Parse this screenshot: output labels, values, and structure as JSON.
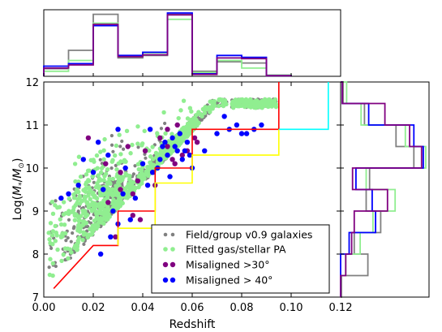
{
  "chart_data": {
    "type": "scatter",
    "xlabel": "Redshift",
    "ylabel": "Log(M_*/M_⊙)",
    "ylabel_parts": {
      "pre": "Log(",
      "M": "M",
      "sub": "*",
      "slash": "/",
      "M2": "M",
      "sub2": "⊙",
      "post": ")"
    },
    "xlim": [
      0.0,
      0.12
    ],
    "ylim": [
      7,
      12
    ],
    "x_ticks": [
      "0.00",
      "0.02",
      "0.04",
      "0.06",
      "0.08",
      "0.10",
      "0.12"
    ],
    "x_tick_values": [
      0.0,
      0.02,
      0.04,
      0.06,
      0.08,
      0.1,
      0.12
    ],
    "y_ticks": [
      "7",
      "8",
      "9",
      "10",
      "11",
      "12"
    ],
    "y_tick_values": [
      7,
      8,
      9,
      10,
      11,
      12
    ],
    "legend": {
      "placement": "bottom-right",
      "entries": [
        {
          "label": "Field/group v0.9 galaxies",
          "color": "#808080"
        },
        {
          "label": "Fitted gas/stellar PA",
          "color": "#90ee90"
        },
        {
          "label": "Misaligned >30°",
          "color": "#800080"
        },
        {
          "label": "Misaligned > 40°",
          "color": "#0000ff"
        }
      ]
    },
    "colors": {
      "field": "#808080",
      "fitted": "#90ee90",
      "mis30": "#800080",
      "mis40": "#0000ff",
      "limit_red": "#ff0000",
      "limit_yellow": "#ffff00",
      "limit_cyan": "#00ffff"
    },
    "limit_lines": [
      {
        "color": "#ff0000",
        "x": [
          0.004,
          0.02,
          0.02,
          0.03,
          0.03,
          0.045,
          0.045,
          0.06,
          0.06,
          0.095,
          0.095
        ],
        "y": [
          7.2,
          8.2,
          8.2,
          8.2,
          9.0,
          9.0,
          10.0,
          10.0,
          10.9,
          10.9,
          12.0
        ]
      },
      {
        "color": "#ffff00",
        "x": [
          0.03,
          0.03,
          0.045,
          0.045,
          0.06,
          0.06,
          0.095,
          0.095
        ],
        "y": [
          8.2,
          8.6,
          8.6,
          9.65,
          9.65,
          10.3,
          10.3,
          10.9
        ]
      },
      {
        "color": "#00ffff",
        "x": [
          0.095,
          0.115,
          0.115
        ],
        "y": [
          10.9,
          10.9,
          12.0
        ]
      }
    ],
    "scatter_mis30": {
      "x": [
        0.018,
        0.025,
        0.026,
        0.029,
        0.031,
        0.034,
        0.036,
        0.038,
        0.041,
        0.044,
        0.047,
        0.05,
        0.052,
        0.054,
        0.058,
        0.062,
        0.039,
        0.05,
        0.045,
        0.053,
        0.056,
        0.061,
        0.031,
        0.036
      ],
      "y": [
        10.7,
        10.1,
        9.2,
        8.4,
        9.5,
        10.5,
        8.9,
        9.7,
        10.4,
        9.9,
        10.7,
        10.5,
        10.2,
        11.0,
        10.4,
        10.6,
        8.8,
        10.9,
        9.6,
        10.1,
        10.3,
        10.7,
        9.9,
        9.4
      ]
    },
    "scatter_mis40": {
      "x": [
        0.007,
        0.01,
        0.014,
        0.016,
        0.02,
        0.022,
        0.024,
        0.026,
        0.028,
        0.03,
        0.032,
        0.033,
        0.035,
        0.037,
        0.04,
        0.042,
        0.044,
        0.046,
        0.048,
        0.05,
        0.052,
        0.054,
        0.056,
        0.058,
        0.06,
        0.065,
        0.07,
        0.073,
        0.075,
        0.078,
        0.08,
        0.082,
        0.085,
        0.088,
        0.03,
        0.027,
        0.023,
        0.043,
        0.047,
        0.055,
        0.059,
        0.051,
        0.049,
        0.053,
        0.057
      ],
      "y": [
        9.3,
        9.4,
        9.6,
        10.2,
        9.9,
        10.6,
        9.5,
        10.3,
        9.0,
        10.9,
        9.4,
        10.0,
        8.8,
        9.3,
        10.1,
        9.6,
        9.9,
        10.0,
        10.5,
        10.3,
        10.7,
        10.4,
        10.2,
        10.6,
        10.0,
        10.4,
        10.8,
        11.2,
        10.9,
        11.0,
        10.8,
        10.8,
        10.9,
        11.0,
        8.7,
        8.4,
        8.0,
        10.9,
        10.2,
        10.8,
        10.3,
        9.8,
        10.6,
        10.5,
        10.4
      ]
    },
    "top_hist": {
      "bin_edges": [
        0.0,
        0.01,
        0.02,
        0.03,
        0.04,
        0.05,
        0.06,
        0.07,
        0.08,
        0.09,
        0.1
      ],
      "ymax": 1.0,
      "series": [
        {
          "color": "#808080",
          "values": [
            0.12,
            0.41,
            0.98,
            0.29,
            0.33,
            0.98,
            0.08,
            0.23,
            0.21,
            0.02
          ]
        },
        {
          "color": "#90ee90",
          "values": [
            0.08,
            0.25,
            0.84,
            0.31,
            0.37,
            0.9,
            0.06,
            0.25,
            0.13,
            0.02
          ]
        },
        {
          "color": "#0000ff",
          "values": [
            0.16,
            0.2,
            0.8,
            0.33,
            0.38,
            1.0,
            0.04,
            0.33,
            0.3,
            0.01
          ]
        },
        {
          "color": "#800080",
          "values": [
            0.13,
            0.18,
            0.82,
            0.31,
            0.34,
            0.97,
            0.03,
            0.29,
            0.28,
            0.01
          ]
        }
      ]
    },
    "right_hist": {
      "bin_edges": [
        7,
        7.5,
        8,
        8.5,
        9,
        9.5,
        10,
        10.5,
        11,
        11.5,
        12
      ],
      "xmax": 1.0,
      "series": [
        {
          "color": "#808080",
          "values": [
            0.01,
            0.32,
            0.16,
            0.47,
            0.3,
            0.34,
            0.86,
            0.65,
            0.28,
            0.03
          ]
        },
        {
          "color": "#90ee90",
          "values": [
            0.0,
            0.06,
            0.23,
            0.38,
            0.64,
            0.3,
            1.0,
            0.76,
            0.24,
            0.07
          ]
        },
        {
          "color": "#0000ff",
          "values": [
            0.0,
            0.0,
            0.1,
            0.41,
            0.37,
            0.18,
            0.97,
            0.86,
            0.33,
            0.02
          ]
        },
        {
          "color": "#800080",
          "values": [
            0.0,
            0.06,
            0.13,
            0.16,
            0.55,
            0.14,
            0.95,
            0.81,
            0.52,
            0.02
          ]
        }
      ]
    }
  }
}
